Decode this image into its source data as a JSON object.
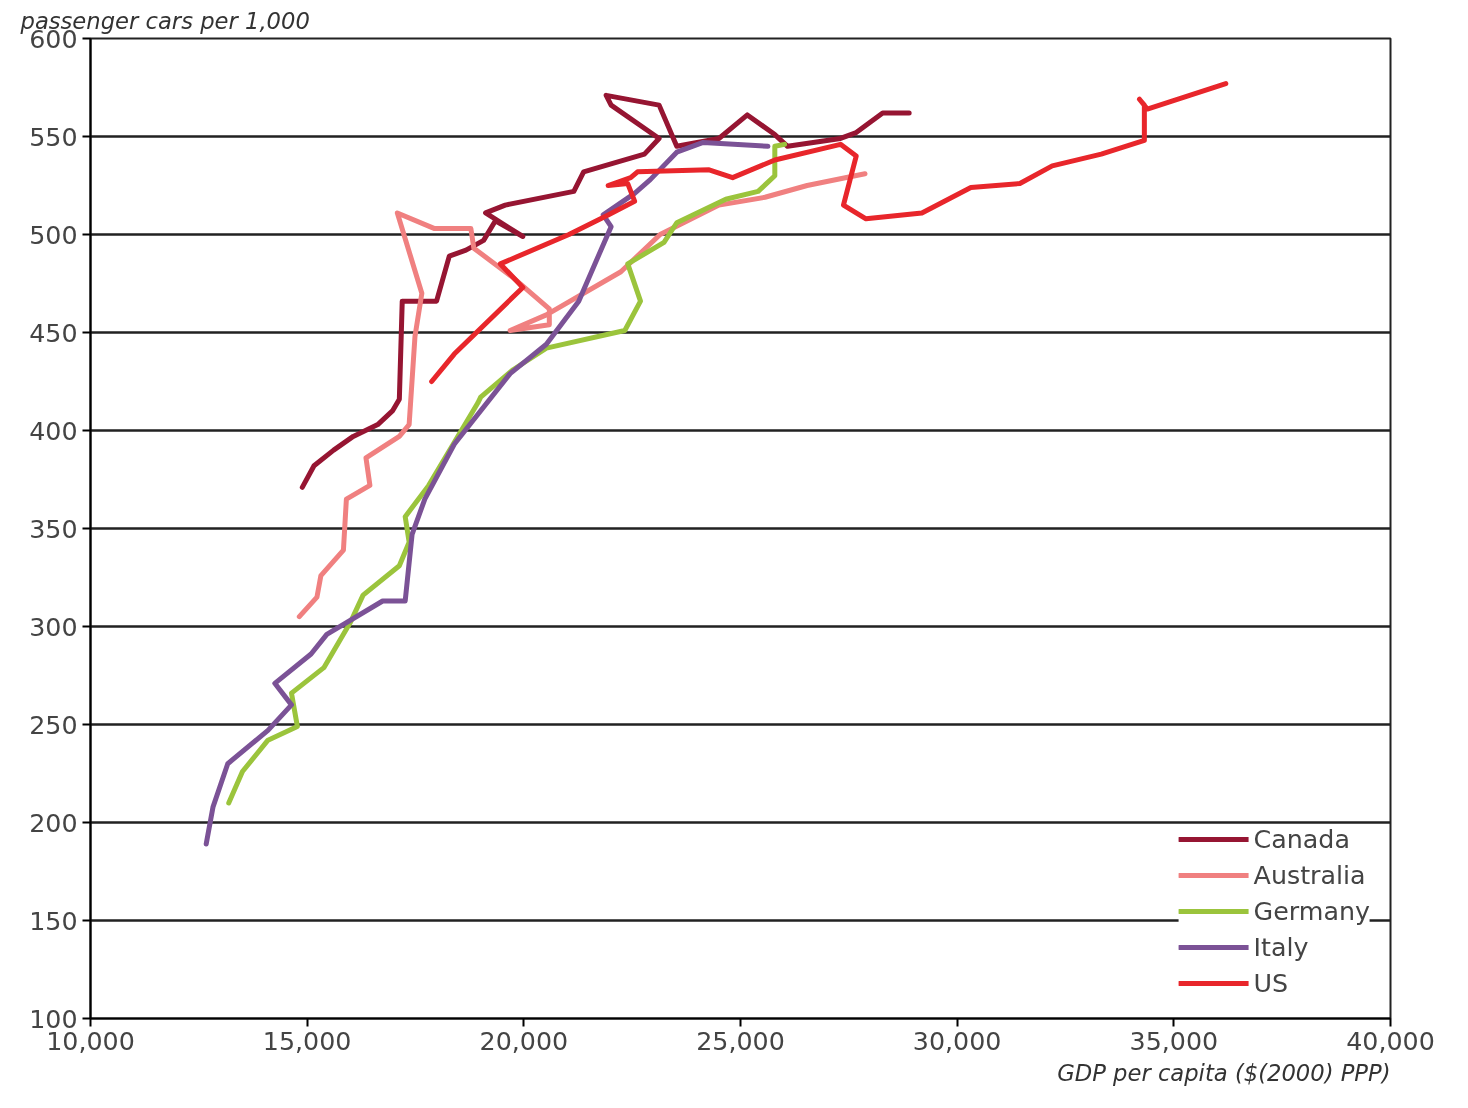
{
  "chart_data": {
    "type": "line",
    "xlabel": "GDP per capita ($(2000) PPP)",
    "ylabel": "passenger cars per 1,000",
    "xlim": [
      10000,
      40000
    ],
    "ylim": [
      100,
      600
    ],
    "xticks": [
      {
        "value": 10000,
        "label": "10,000"
      },
      {
        "value": 15000,
        "label": "15,000"
      },
      {
        "value": 20000,
        "label": "20,000"
      },
      {
        "value": 25000,
        "label": "25,000"
      },
      {
        "value": 30000,
        "label": "30,000"
      },
      {
        "value": 35000,
        "label": "35,000"
      },
      {
        "value": 40000,
        "label": "40,000"
      }
    ],
    "yticks": [
      100,
      150,
      200,
      250,
      300,
      350,
      400,
      450,
      500,
      550,
      600
    ],
    "grid": "y",
    "legend": "bottom right",
    "marker": "none",
    "line_style": "solid",
    "series": [
      {
        "name": "Canada",
        "color": "#961532",
        "x": [
          14887,
          15158,
          15611,
          16063,
          16629,
          16968,
          17127,
          17194,
          17601,
          17986,
          18280,
          18665,
          19072,
          19344,
          19977,
          19117,
          19570,
          21154,
          21380,
          22783,
          23122,
          22014,
          21900,
          23122,
          23529,
          24502,
          25158,
          25792,
          26086,
          27308,
          27670,
          28281,
          28892
        ],
        "values": [
          371,
          382,
          390,
          397,
          403,
          410,
          416,
          466,
          466,
          466,
          489,
          492,
          497,
          507,
          499,
          511,
          515,
          522,
          532,
          541,
          549,
          566,
          571,
          566,
          545,
          549,
          561,
          551,
          545,
          549,
          552,
          562,
          562
        ]
      },
      {
        "name": "Australia",
        "color": "#f08080",
        "x": [
          14819,
          15226,
          15317,
          15837,
          15905,
          16448,
          16357,
          17127,
          17353,
          17488,
          17646,
          17081,
          17941,
          18778,
          18846,
          19751,
          20588,
          20588,
          19683,
          20520,
          22240,
          23145,
          24502,
          25565,
          26538,
          27873
        ],
        "values": [
          305,
          315,
          326,
          339,
          365,
          372,
          386,
          397,
          403,
          448,
          470,
          511,
          503,
          503,
          493,
          478,
          462,
          454,
          451,
          459,
          481,
          500,
          515,
          519,
          525,
          531
        ]
      },
      {
        "name": "Germany",
        "color": "#9bc43c",
        "x": [
          13190,
          13507,
          14095,
          14774,
          14638,
          15385,
          15995,
          16290,
          17127,
          17353,
          17262,
          17805,
          18937,
          19004,
          19751,
          20520,
          22330,
          22692,
          22398,
          23235,
          23529,
          24660,
          25407,
          25792,
          25792,
          26018
        ],
        "values": [
          210,
          226,
          242,
          249,
          266,
          279,
          302,
          316,
          331,
          343,
          356,
          372,
          414,
          417,
          431,
          442,
          451,
          466,
          485,
          496,
          506,
          518,
          522,
          530,
          545,
          546
        ]
      },
      {
        "name": "Italy",
        "color": "#7b5296",
        "x": [
          12670,
          12828,
          13167,
          14095,
          14638,
          14253,
          15090,
          15453,
          16742,
          17262,
          17421,
          17715,
          18394,
          19683,
          20520,
          21267,
          22014,
          21832,
          22556,
          22918,
          23529,
          24140,
          25633
        ],
        "values": [
          189,
          208,
          230,
          247,
          260,
          271,
          286,
          296,
          313,
          313,
          347,
          365,
          393,
          429,
          444,
          466,
          504,
          510,
          521,
          528,
          542,
          547,
          545
        ]
      },
      {
        "name": "US",
        "color": "#e8262b",
        "x": [
          17873,
          18394,
          19977,
          19457,
          21041,
          21945,
          22556,
          22398,
          21945,
          22466,
          22624,
          24276,
          24818,
          25792,
          27308,
          27670,
          27376,
          27896,
          29186,
          30316,
          31447,
          32194,
          33325,
          34320,
          34320,
          34207,
          34388,
          36199
        ],
        "values": [
          425,
          439,
          473,
          485,
          500,
          510,
          517,
          526,
          525,
          529,
          532,
          533,
          529,
          538,
          546,
          540,
          515,
          508,
          511,
          524,
          526,
          535,
          541,
          548,
          566,
          569,
          564,
          577
        ]
      }
    ]
  }
}
